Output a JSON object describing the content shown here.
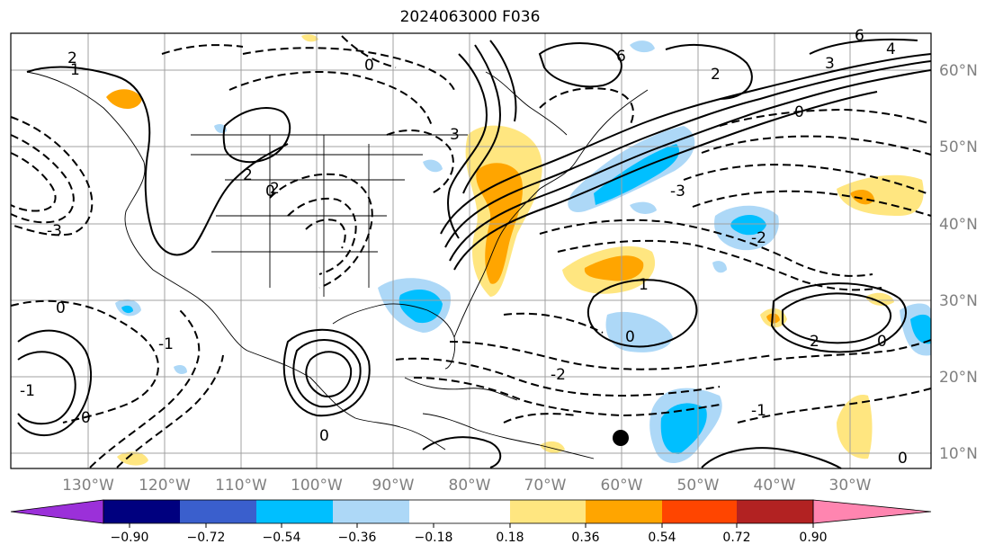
{
  "title": "2024063000 F036",
  "map": {
    "longitude_labels": [
      "130°W",
      "120°W",
      "110°W",
      "100°W",
      "90°W",
      "80°W",
      "70°W",
      "60°W",
      "50°W",
      "40°W",
      "30°W"
    ],
    "latitude_labels": [
      "60°N",
      "50°N",
      "40°N",
      "30°N",
      "20°N",
      "10°N"
    ],
    "contour_labels": [
      "2",
      "1",
      "0",
      "-1",
      "-2",
      "-3",
      "3",
      "4",
      "6"
    ]
  },
  "colorbar": {
    "ticks": [
      "−0.90",
      "−0.72",
      "−0.54",
      "−0.36",
      "−0.18",
      "0.18",
      "0.36",
      "0.54",
      "0.72",
      "0.90"
    ],
    "colors": {
      "lt_-0.90": "#9b30d9",
      "-0.90_-0.72": "#8a2be2",
      "-0.72_-0.54": "#00007f",
      "-0.54_-0.36": "#3a5fcd",
      "-0.36_-0.18": "#00bfff",
      "-0.18_0.18": "#ffffff",
      "light_blue": "#add8f7",
      "0.18_0.36": "#ffe680",
      "0.36_0.54": "#ffa500",
      "0.54_0.72": "#ff4500",
      "0.72_0.90": "#b22222",
      "gt_0.90": "#ff85b0"
    }
  },
  "marker": {
    "label": "dot",
    "color": "#000000"
  }
}
